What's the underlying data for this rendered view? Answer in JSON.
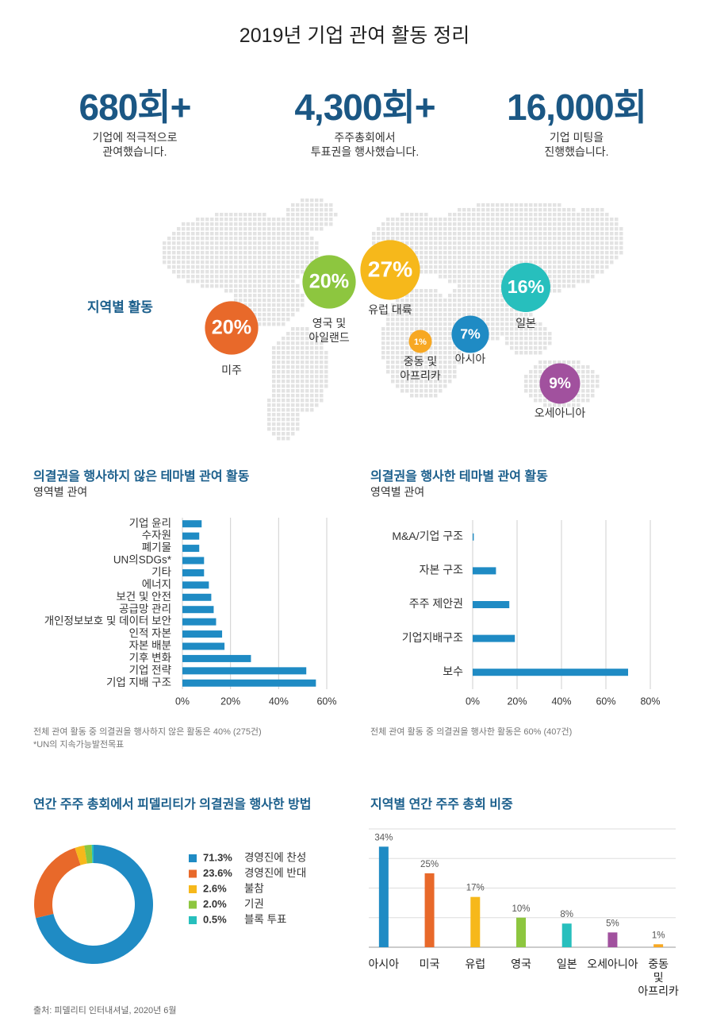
{
  "title": "2019년 기업 관여 활동 정리",
  "stats": [
    {
      "value": "680회+",
      "label": "기업에 적극적으로\n관여했습니다."
    },
    {
      "value": "4,300회+",
      "label": "주주총회에서\n투표권을 행사했습니다."
    },
    {
      "value": "16,000회",
      "label": "기업 미팅을\n진행했습니다."
    }
  ],
  "source": "출처: 피델리티 인터내셔널, 2020년 6월",
  "chart_data": [
    {
      "type": "bubble",
      "title": "지역별 활동",
      "categories": [
        "미주",
        "영국 및\n아일랜드",
        "유럽 대륙",
        "중동 및\n아프리카",
        "아시아",
        "일본",
        "오세아니아"
      ],
      "values": [
        20,
        20,
        27,
        1,
        7,
        16,
        9
      ],
      "value_labels": [
        "20%",
        "20%",
        "27%",
        "1%",
        "7%",
        "16%",
        "9%"
      ],
      "colors": [
        "#e8692a",
        "#8dc63f",
        "#f6b81b",
        "#f7a823",
        "#1f8bc4",
        "#27bfbd",
        "#a1519e"
      ]
    },
    {
      "type": "hbar",
      "title": "의결권을 행사하지 않은 테마별 관여 활동",
      "subtitle": "영역별 관여",
      "categories": [
        "기업 윤리",
        "수자원",
        "폐기물",
        "UN의SDGs*",
        "기타",
        "에너지",
        "보건 및 안전",
        "공급망 관리",
        "개인정보보호 및 데이터 보안",
        "인적 자본",
        "자본 배분",
        "기후 변화",
        "기업 전략",
        "기업 지배 구조"
      ],
      "values": [
        8,
        7,
        7,
        9,
        9,
        11,
        12,
        13,
        14,
        16.5,
        17.5,
        28.5,
        51.5,
        55.5
      ],
      "color": "#1f8bc4",
      "xlim": [
        0,
        60
      ],
      "xticks": [
        {
          "value": 0,
          "label": "0%"
        },
        {
          "value": 20,
          "label": "20%"
        },
        {
          "value": 40,
          "label": "40%"
        },
        {
          "value": 60,
          "label": "60%"
        }
      ],
      "grid": true,
      "notes": [
        "전체 관여 활동 중 의결권을 행사하지 않은 활동은 40% (275건)",
        "*UN의 지속가능발전목표"
      ]
    },
    {
      "type": "hbar",
      "title": "의결권을 행사한 테마별 관여 활동",
      "subtitle": "영역별 관여",
      "categories": [
        "M&A/기업 구조",
        "자본 구조",
        "주주 제안권",
        "기업지배구조",
        "보수"
      ],
      "values": [
        0.5,
        10.5,
        16.5,
        19,
        70
      ],
      "color": "#1f8bc4",
      "xlim": [
        0,
        80
      ],
      "xticks": [
        {
          "value": 0,
          "label": "0%"
        },
        {
          "value": 20,
          "label": "20%"
        },
        {
          "value": 40,
          "label": "40%"
        },
        {
          "value": 60,
          "label": "60%"
        },
        {
          "value": 80,
          "label": "80%"
        }
      ],
      "grid": true,
      "notes": [
        "전체 관여 활동 중 의결권을 행사한 활동은 60% (407건)"
      ]
    },
    {
      "type": "donut",
      "title": "연간 주주 총회에서 피델리티가 의결권을 행사한 방법",
      "categories": [
        "경영진에 찬성",
        "경영진에 반대",
        "불참",
        "기권",
        "블록 투표"
      ],
      "values": [
        71.3,
        23.6,
        2.6,
        2.0,
        0.5
      ],
      "value_labels": [
        "71.3%",
        "23.6%",
        "2.6%",
        "2.0%",
        "0.5%"
      ],
      "colors": [
        "#1f8bc4",
        "#e8692a",
        "#f6b81b",
        "#8dc63f",
        "#27bfbd"
      ]
    },
    {
      "type": "bar",
      "title": "지역별 연간 주주 총회 비중",
      "categories": [
        "아시아",
        "미국",
        "유럽",
        "영국",
        "일본",
        "오세아니아",
        "중동\n및\n아프리카"
      ],
      "values": [
        34,
        25,
        17,
        10,
        8,
        5,
        1
      ],
      "value_labels": [
        "34%",
        "25%",
        "17%",
        "10%",
        "8%",
        "5%",
        "1%"
      ],
      "colors": [
        "#1f8bc4",
        "#e8692a",
        "#f6b81b",
        "#8dc63f",
        "#27bfbd",
        "#a1519e",
        "#f7a823"
      ],
      "ylim": [
        0,
        40
      ],
      "yticks": [
        0,
        10,
        20,
        30,
        40
      ],
      "grid": true
    }
  ]
}
